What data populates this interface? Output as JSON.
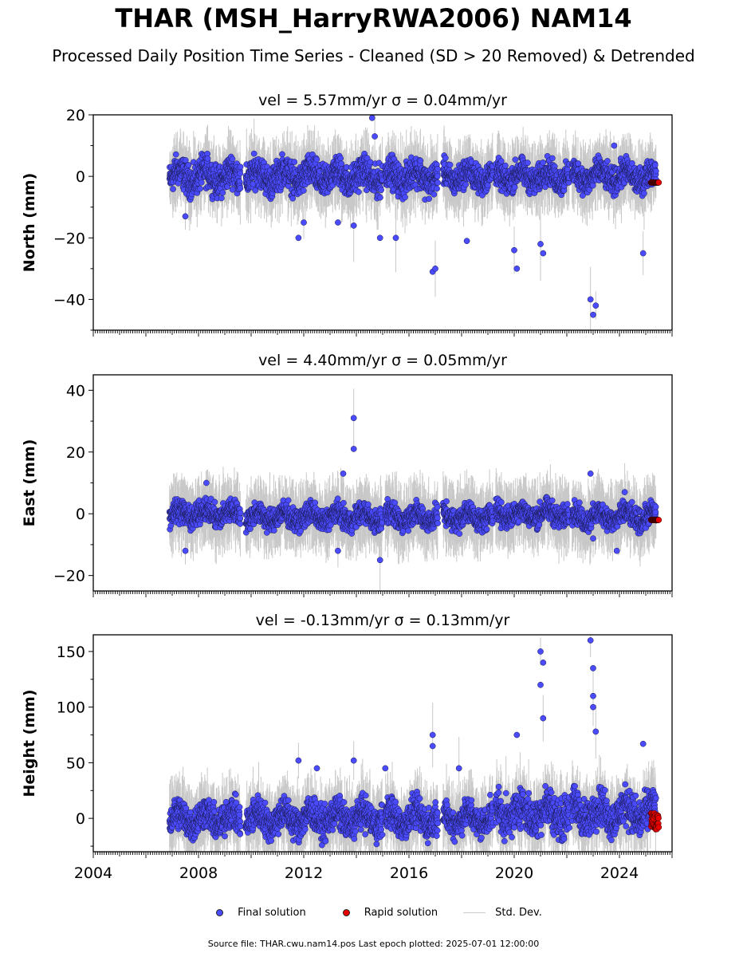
{
  "title": "THAR (MSH_HarryRWA2006) NAM14",
  "subtitle": "Processed Daily Position Time Series - Cleaned (SD > 20 Removed) & Detrended",
  "legend": {
    "final": "Final solution",
    "rapid": "Rapid solution",
    "stddev": "Std. Dev."
  },
  "footer": "Source file: THAR.cwu.nam14.pos  Last epoch plotted: 2025-07-01 12:00:00",
  "colors": {
    "final": "#4a4aff",
    "rapid": "#e80000",
    "stddev": "#c8c8c8"
  },
  "chart_data": [
    {
      "type": "scatter",
      "title": "vel = 5.57mm/yr   σ = 0.04mm/yr",
      "ylabel": "North (mm)",
      "xlim": [
        2004,
        2026
      ],
      "ylim": [
        -50,
        20
      ],
      "yticks": [
        -40,
        -20,
        0,
        20
      ],
      "xticks": [],
      "grid": false,
      "series": [
        {
          "name": "Final solution",
          "segments": [
            [
              2006.9,
              2009.6,
              0,
              3.5
            ],
            [
              2009.8,
              2015.0,
              0,
              3.5
            ],
            [
              2015.1,
              2017.1,
              0,
              3.5
            ],
            [
              2017.3,
              2019.2,
              0,
              3.0
            ],
            [
              2019.3,
              2022.1,
              0,
              3.0
            ],
            [
              2022.2,
              2025.4,
              0,
              3.0
            ]
          ],
          "outliers": [
            [
              2007.5,
              -13
            ],
            [
              2011.8,
              -20
            ],
            [
              2012.0,
              -15
            ],
            [
              2013.3,
              -15
            ],
            [
              2013.9,
              -16
            ],
            [
              2014.6,
              19
            ],
            [
              2014.7,
              13
            ],
            [
              2014.9,
              -20
            ],
            [
              2015.5,
              -20
            ],
            [
              2016.9,
              -31
            ],
            [
              2017.0,
              -30
            ],
            [
              2018.2,
              -21
            ],
            [
              2020.0,
              -24
            ],
            [
              2020.1,
              -30
            ],
            [
              2021.0,
              -22
            ],
            [
              2021.1,
              -25
            ],
            [
              2022.9,
              -40
            ],
            [
              2023.0,
              -45
            ],
            [
              2023.1,
              -42
            ],
            [
              2023.8,
              10
            ],
            [
              2024.9,
              -25
            ]
          ]
        },
        {
          "name": "Rapid solution",
          "x": [
            2025.2,
            2025.5
          ],
          "y": [
            -2,
            -2
          ]
        }
      ]
    },
    {
      "type": "scatter",
      "title": "vel = 4.40mm/yr   σ = 0.05mm/yr",
      "ylabel": "East (mm)",
      "xlim": [
        2004,
        2026
      ],
      "ylim": [
        -25,
        45
      ],
      "yticks": [
        -20,
        0,
        20,
        40
      ],
      "xticks": [],
      "grid": false,
      "series": [
        {
          "name": "Final solution",
          "segments": [
            [
              2006.9,
              2009.6,
              0,
              2.5
            ],
            [
              2009.8,
              2015.0,
              -1,
              2.5
            ],
            [
              2015.1,
              2017.1,
              -1,
              2.5
            ],
            [
              2017.3,
              2019.2,
              -1,
              2.5
            ],
            [
              2019.3,
              2022.1,
              0,
              2.5
            ],
            [
              2022.2,
              2025.4,
              -1,
              2.5
            ]
          ],
          "outliers": [
            [
              2007.5,
              -12
            ],
            [
              2008.3,
              10
            ],
            [
              2013.3,
              -12
            ],
            [
              2013.5,
              13
            ],
            [
              2013.9,
              31
            ],
            [
              2013.9,
              21
            ],
            [
              2014.9,
              -15
            ],
            [
              2022.9,
              13
            ],
            [
              2023.0,
              -8
            ],
            [
              2023.9,
              -12
            ],
            [
              2024.2,
              7
            ]
          ]
        },
        {
          "name": "Rapid solution",
          "x": [
            2025.2,
            2025.5
          ],
          "y": [
            -2,
            -2
          ]
        }
      ]
    },
    {
      "type": "scatter",
      "title": "vel = -0.13mm/yr   σ = 0.13mm/yr",
      "ylabel": "Height (mm)",
      "xlim": [
        2004,
        2026
      ],
      "ylim": [
        -30,
        165
      ],
      "yticks": [
        0,
        50,
        100,
        150
      ],
      "xticks": [
        2004,
        2008,
        2012,
        2016,
        2020,
        2024
      ],
      "grid": false,
      "series": [
        {
          "name": "Final solution",
          "segments": [
            [
              2006.9,
              2009.6,
              0,
              10
            ],
            [
              2009.8,
              2015.0,
              0,
              10
            ],
            [
              2015.1,
              2017.1,
              0,
              10
            ],
            [
              2017.3,
              2019.2,
              0,
              9
            ],
            [
              2019.3,
              2022.1,
              5,
              12
            ],
            [
              2022.2,
              2025.4,
              5,
              12
            ]
          ],
          "outliers": [
            [
              2011.8,
              52
            ],
            [
              2012.5,
              45
            ],
            [
              2013.9,
              52
            ],
            [
              2015.1,
              45
            ],
            [
              2016.9,
              75
            ],
            [
              2016.9,
              65
            ],
            [
              2017.9,
              45
            ],
            [
              2020.1,
              75
            ],
            [
              2021.0,
              150
            ],
            [
              2021.0,
              120
            ],
            [
              2021.1,
              90
            ],
            [
              2021.1,
              140
            ],
            [
              2022.9,
              160
            ],
            [
              2023.0,
              135
            ],
            [
              2023.0,
              110
            ],
            [
              2023.0,
              100
            ],
            [
              2023.1,
              78
            ],
            [
              2024.9,
              67
            ]
          ]
        },
        {
          "name": "Rapid solution",
          "x": [
            2025.2,
            2025.5
          ],
          "y": [
            -10,
            5
          ]
        }
      ]
    }
  ]
}
